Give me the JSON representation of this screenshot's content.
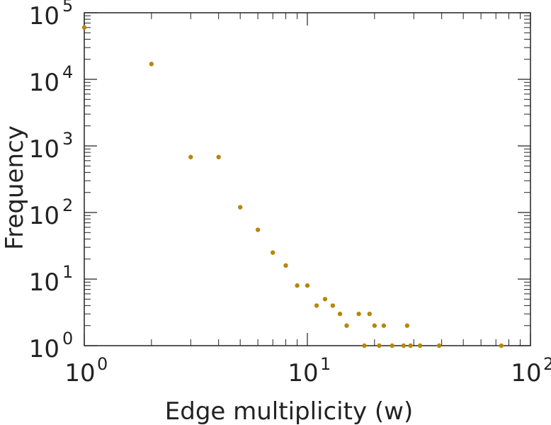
{
  "chart_data": {
    "type": "scatter",
    "title": "",
    "xlabel": "Edge multiplicity (w)",
    "ylabel": "Frequency",
    "xscale": "log",
    "yscale": "log",
    "xlim": [
      1,
      100
    ],
    "ylim": [
      1,
      100000
    ],
    "grid": false,
    "legend": "none",
    "marker_color": "#b8860b",
    "x_ticks": [
      {
        "base": "10",
        "exp": "0",
        "value": 1
      },
      {
        "base": "10",
        "exp": "1",
        "value": 10
      },
      {
        "base": "10",
        "exp": "2",
        "value": 100
      }
    ],
    "y_ticks": [
      {
        "base": "10",
        "exp": "0",
        "value": 1
      },
      {
        "base": "10",
        "exp": "1",
        "value": 10
      },
      {
        "base": "10",
        "exp": "2",
        "value": 100
      },
      {
        "base": "10",
        "exp": "3",
        "value": 1000
      },
      {
        "base": "10",
        "exp": "4",
        "value": 10000
      },
      {
        "base": "10",
        "exp": "5",
        "value": 100000
      }
    ],
    "points": [
      {
        "x": 1,
        "y": 60000
      },
      {
        "x": 2,
        "y": 17000
      },
      {
        "x": 3,
        "y": 680
      },
      {
        "x": 4,
        "y": 680
      },
      {
        "x": 5,
        "y": 120
      },
      {
        "x": 6,
        "y": 55
      },
      {
        "x": 7,
        "y": 25
      },
      {
        "x": 8,
        "y": 16
      },
      {
        "x": 9,
        "y": 8
      },
      {
        "x": 10,
        "y": 8
      },
      {
        "x": 11,
        "y": 4
      },
      {
        "x": 12,
        "y": 5
      },
      {
        "x": 13,
        "y": 4
      },
      {
        "x": 14,
        "y": 3
      },
      {
        "x": 15,
        "y": 2
      },
      {
        "x": 17,
        "y": 3
      },
      {
        "x": 18,
        "y": 1
      },
      {
        "x": 19,
        "y": 3
      },
      {
        "x": 20,
        "y": 2
      },
      {
        "x": 21,
        "y": 1
      },
      {
        "x": 22,
        "y": 2
      },
      {
        "x": 24,
        "y": 1
      },
      {
        "x": 27,
        "y": 1
      },
      {
        "x": 28,
        "y": 2
      },
      {
        "x": 29,
        "y": 1
      },
      {
        "x": 32,
        "y": 1
      },
      {
        "x": 39,
        "y": 1
      },
      {
        "x": 74,
        "y": 1
      }
    ]
  }
}
